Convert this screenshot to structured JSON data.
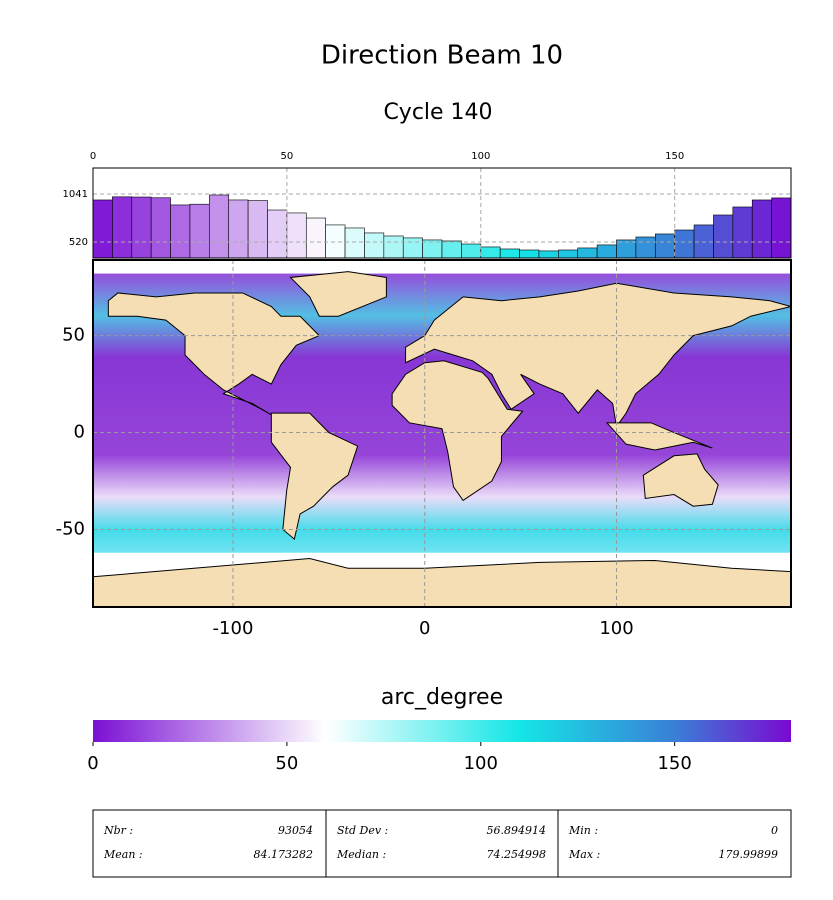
{
  "title": "Direction Beam 10",
  "subtitle": "Cycle 140",
  "chart_data": [
    {
      "type": "histogram",
      "bins": [
        0,
        5,
        10,
        15,
        20,
        25,
        30,
        35,
        40,
        45,
        50,
        55,
        60,
        65,
        70,
        75,
        80,
        85,
        90,
        95,
        100,
        105,
        110,
        115,
        120,
        125,
        130,
        135,
        140,
        145,
        150,
        155,
        160,
        165,
        170,
        175,
        180
      ],
      "counts": [
        976,
        1010,
        1008,
        1000,
        922,
        930,
        1030,
        976,
        970,
        867,
        835,
        780,
        705,
        672,
        618,
        585,
        564,
        542,
        531,
        498,
        466,
        444,
        433,
        423,
        433,
        455,
        488,
        542,
        574,
        607,
        650,
        705,
        813,
        900,
        976,
        998
      ],
      "xlim": [
        0,
        180
      ],
      "xticks": [
        0,
        50,
        100,
        150
      ],
      "ylim": [
        346,
        1323
      ],
      "yticks": [
        520,
        1041
      ],
      "grid": true
    },
    {
      "type": "map",
      "xlim": [
        -173,
        191
      ],
      "xticks": [
        -100,
        0,
        100
      ],
      "ylim": [
        -90,
        89
      ],
      "yticks": [
        -50,
        0,
        50
      ],
      "grid": true,
      "land_color": "#f5deb3"
    },
    {
      "type": "colorbar",
      "label": "arc_degree",
      "xlim": [
        0,
        180
      ],
      "xticks": [
        0,
        50,
        100,
        150
      ],
      "colormap": [
        {
          "value": 0,
          "color": "#7b10d4"
        },
        {
          "value": 60,
          "color": "#ffffff"
        },
        {
          "value": 110,
          "color": "#14e6e6"
        },
        {
          "value": 150,
          "color": "#3a7fd6"
        },
        {
          "value": 180,
          "color": "#7a0ad2"
        }
      ]
    }
  ],
  "stats": [
    [
      {
        "label": "Nbr :",
        "value": "93054"
      },
      {
        "label": "Mean :",
        "value": "84.173282"
      }
    ],
    [
      {
        "label": "Std Dev :",
        "value": "56.894914"
      },
      {
        "label": "Median :",
        "value": "74.254998"
      }
    ],
    [
      {
        "label": "Min :",
        "value": "0"
      },
      {
        "label": "Max :",
        "value": "179.99899"
      }
    ]
  ]
}
